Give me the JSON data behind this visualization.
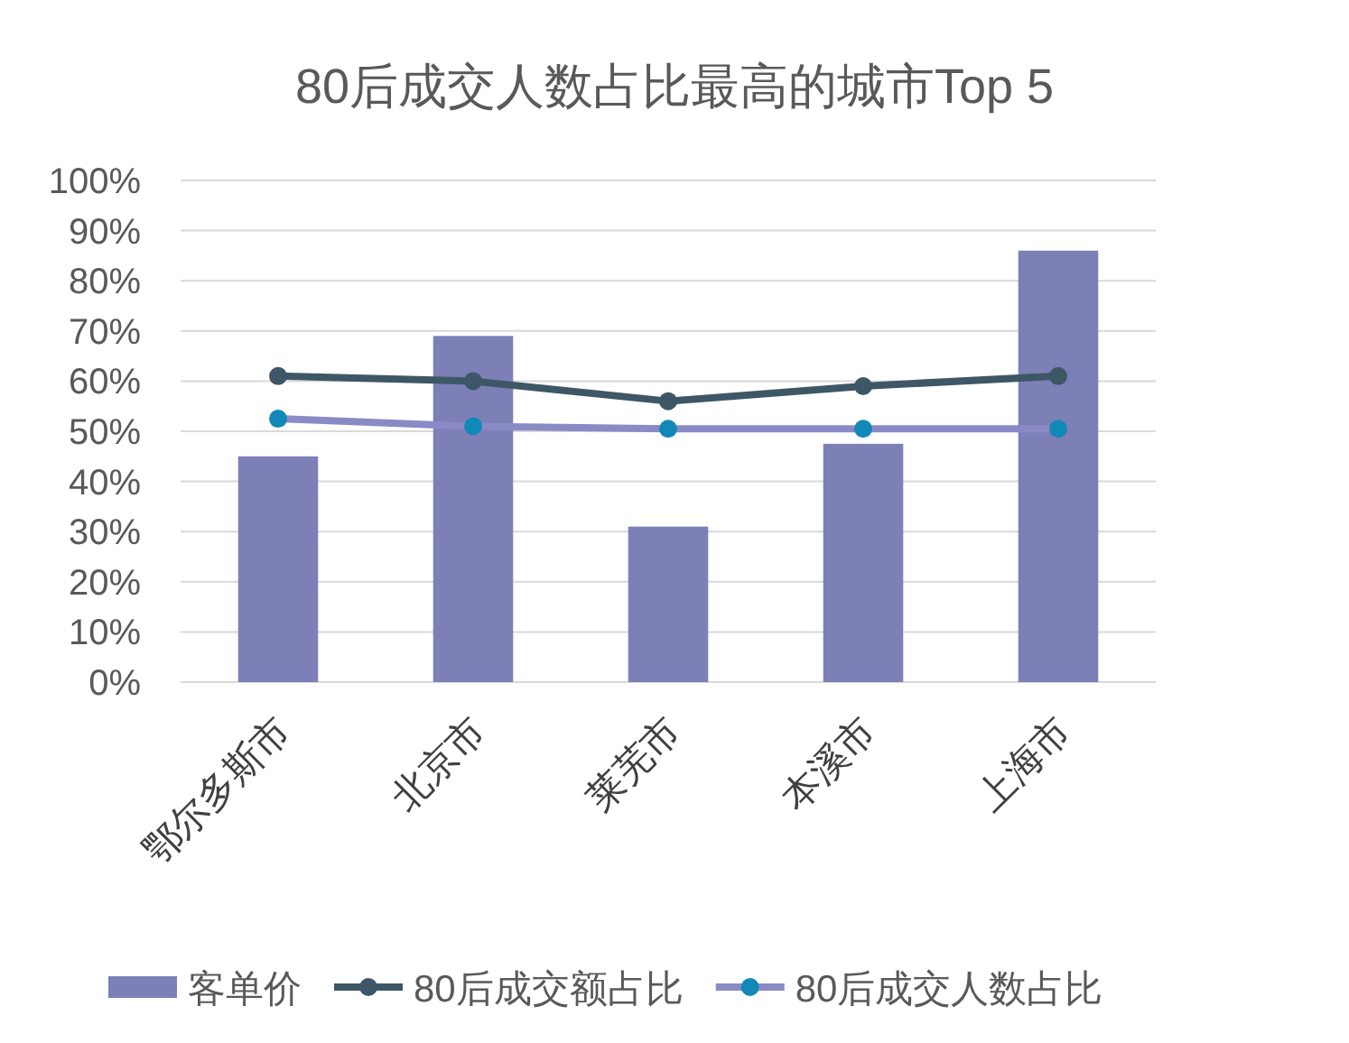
{
  "chart_data": {
    "type": "bar",
    "title": "80后成交人数占比最高的城市Top 5",
    "categories": [
      "鄂尔多斯市",
      "北京市",
      "莱芜市",
      "本溪市",
      "上海市"
    ],
    "series": [
      {
        "name": "客单价",
        "color": "#7c80b6",
        "values": [
          45,
          69,
          31,
          47.5,
          86
        ]
      },
      {
        "name": "80后成交额占比",
        "type": "line",
        "color": "#3e5766",
        "marker": "circle",
        "values": [
          61,
          60,
          56,
          59,
          61
        ]
      },
      {
        "name": "80后成交人数占比",
        "type": "line",
        "color": "#8a8ac6",
        "colors": [
          "#1288b8",
          "#1288b8",
          "#1288b8",
          "#1288b8",
          "#1288b8"
        ],
        "marker": "circle",
        "values": [
          52.5,
          51,
          50.5,
          50.5,
          50.5
        ]
      }
    ],
    "ylim": [
      0,
      100
    ],
    "yticks": [
      {
        "value": 0,
        "label": "0%"
      },
      {
        "value": 10,
        "label": "10%"
      },
      {
        "value": 20,
        "label": "20%"
      },
      {
        "value": 30,
        "label": "30%"
      },
      {
        "value": 40,
        "label": "40%"
      },
      {
        "value": 50,
        "label": "50%"
      },
      {
        "value": 60,
        "label": "60%"
      },
      {
        "value": 70,
        "label": "70%"
      },
      {
        "value": 80,
        "label": "80%"
      },
      {
        "value": 90,
        "label": "90%"
      },
      {
        "value": 100,
        "label": "100%"
      }
    ],
    "grid": "y",
    "legend": "bottom"
  }
}
